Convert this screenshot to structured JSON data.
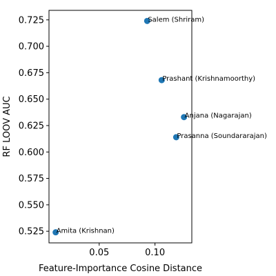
{
  "chart_data": {
    "type": "scatter",
    "title": "",
    "xlabel": "Feature-Importance Cosine Distance",
    "ylabel": "RF LOOV AUC",
    "xlim": [
      0.005,
      0.133
    ],
    "ylim": [
      0.514,
      0.734
    ],
    "xticks": [
      0.05,
      0.1
    ],
    "xtick_labels": [
      "0.05",
      "0.10"
    ],
    "yticks": [
      0.525,
      0.55,
      0.575,
      0.6,
      0.625,
      0.65,
      0.675,
      0.7,
      0.725
    ],
    "ytick_labels": [
      "0.525",
      "0.550",
      "0.575",
      "0.600",
      "0.625",
      "0.650",
      "0.675",
      "0.700",
      "0.725"
    ],
    "grid": false,
    "point_color": "#1f77b4",
    "points": [
      {
        "x": 0.093,
        "y": 0.724,
        "label": "Salem (Shriram)"
      },
      {
        "x": 0.106,
        "y": 0.668,
        "label": "Prashant (Krishnamoorthy)"
      },
      {
        "x": 0.126,
        "y": 0.633,
        "label": "Anjana (Nagarajan)"
      },
      {
        "x": 0.119,
        "y": 0.614,
        "label": "Prasanna (Soundararajan)"
      },
      {
        "x": 0.011,
        "y": 0.524,
        "label": "Amita (Krishnan)"
      }
    ]
  }
}
